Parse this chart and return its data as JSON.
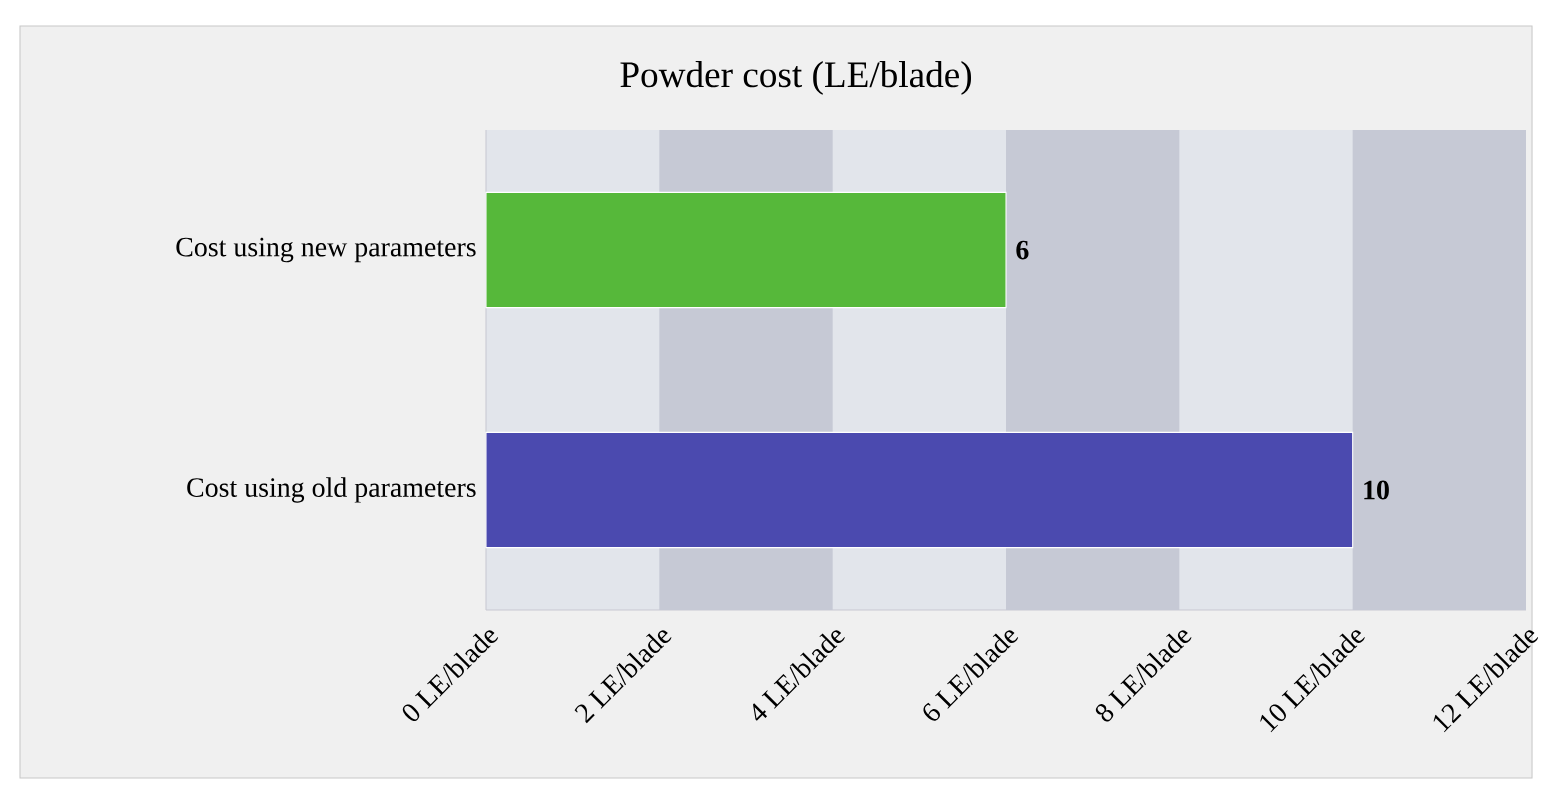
{
  "chart_data": {
    "type": "bar",
    "orientation": "horizontal",
    "title": "Powder cost (LE/blade)",
    "categories": [
      "Cost using new parameters",
      "Cost using old parameters"
    ],
    "values": [
      6,
      10
    ],
    "colors": [
      "#56b83a",
      "#4b4aaf"
    ],
    "data_labels": true,
    "xlim": [
      0,
      12
    ],
    "xticks": [
      {
        "value": 0,
        "label": "0 LE/blade"
      },
      {
        "value": 2,
        "label": "2 LE/blade"
      },
      {
        "value": 4,
        "label": "4 LE/blade"
      },
      {
        "value": 6,
        "label": "6 LE/blade"
      },
      {
        "value": 8,
        "label": "8 LE/blade"
      },
      {
        "value": 10,
        "label": "10 LE/blade"
      },
      {
        "value": 12,
        "label": "12 LE/blade"
      }
    ],
    "bands": [
      {
        "axis": "x",
        "from": 2,
        "to": 4,
        "color": "#c6c9d5"
      },
      {
        "axis": "x",
        "from": 6,
        "to": 8,
        "color": "#c6c9d5"
      },
      {
        "axis": "x",
        "from": 10,
        "to": 12,
        "color": "#c6c9d5"
      }
    ]
  }
}
